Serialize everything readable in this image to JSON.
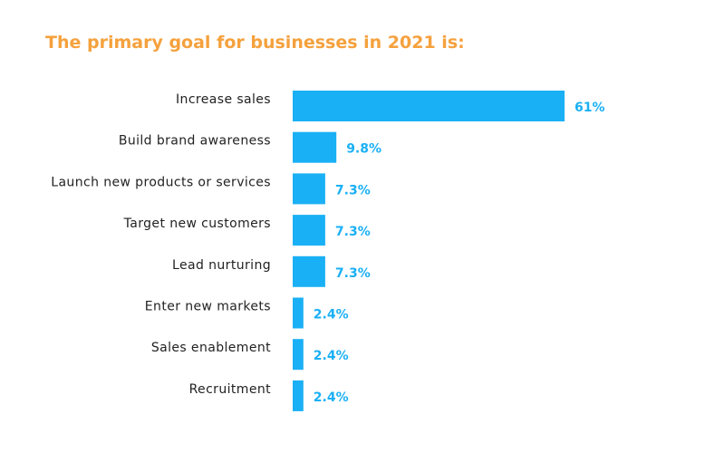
{
  "chart_data": {
    "type": "bar",
    "orientation": "horizontal",
    "title": "The primary goal for businesses in 2021 is:",
    "categories": [
      "Increase sales",
      "Build brand awareness",
      "Launch new products or services",
      "Target new customers",
      "Lead nurturing",
      "Enter new markets",
      "Sales enablement",
      "Recruitment"
    ],
    "values": [
      61,
      9.8,
      7.3,
      7.3,
      7.3,
      2.4,
      2.4,
      2.4
    ],
    "value_labels": [
      "61%",
      "9.8%",
      "7.3%",
      "7.3%",
      "7.3%",
      "2.4%",
      "2.4%",
      "2.4%"
    ],
    "unit": "%",
    "xlim": [
      0,
      61
    ],
    "grid": false,
    "legend": "none"
  },
  "colors": {
    "title": "#f5a13d",
    "bar": "#1ab0f5",
    "value_label": "#1ab0f5",
    "category_label": "#222222",
    "background": "#ffffff"
  }
}
